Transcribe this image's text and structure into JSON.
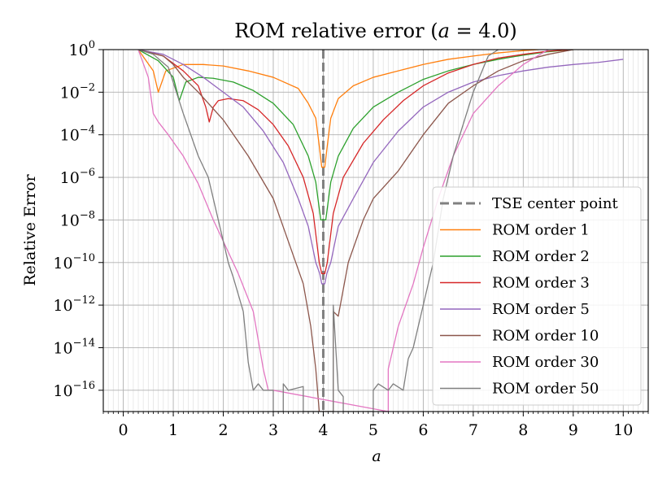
{
  "chart_data": {
    "type": "line",
    "title": "ROM relative error (a = 4.0)",
    "title_parts": {
      "prefix": "ROM relative error (",
      "var": "a",
      "suffix": " = 4.0)"
    },
    "xlabel": "a",
    "ylabel": "Relative Error",
    "xlim": [
      -0.4,
      10.5
    ],
    "ylim": [
      1e-17,
      1
    ],
    "yscale": "log",
    "grid": true,
    "minor_grid_x": true,
    "legend_position": "lower-right",
    "x_ticks": [
      "0",
      "1",
      "2",
      "3",
      "4",
      "5",
      "6",
      "7",
      "8",
      "9",
      "10"
    ],
    "y_ticks": [
      {
        "base": "10",
        "exp": "0",
        "value": 1
      },
      {
        "base": "10",
        "exp": "−2",
        "value": 0.01
      },
      {
        "base": "10",
        "exp": "−4",
        "value": 0.0001
      },
      {
        "base": "10",
        "exp": "−6",
        "value": 1e-06
      },
      {
        "base": "10",
        "exp": "−8",
        "value": 1e-08
      },
      {
        "base": "10",
        "exp": "−10",
        "value": 1e-10
      },
      {
        "base": "10",
        "exp": "−12",
        "value": 1e-12
      },
      {
        "base": "10",
        "exp": "−14",
        "value": 1e-14
      },
      {
        "base": "10",
        "exp": "−16",
        "value": 1e-16
      }
    ],
    "center_line": {
      "name": "TSE center point",
      "x": 4.0,
      "color": "#808080"
    },
    "series": [
      {
        "name": "ROM order 1",
        "color": "#ff7f0e",
        "points": [
          [
            0.3,
            1
          ],
          [
            0.6,
            0.1
          ],
          [
            0.7,
            0.01
          ],
          [
            0.85,
            0.1
          ],
          [
            1.2,
            0.2
          ],
          [
            1.6,
            0.2
          ],
          [
            2.0,
            0.17
          ],
          [
            2.5,
            0.1
          ],
          [
            3.0,
            0.05
          ],
          [
            3.5,
            0.015
          ],
          [
            3.7,
            0.003
          ],
          [
            3.85,
            0.0006
          ],
          [
            3.92,
            3e-05
          ],
          [
            3.97,
            3e-06
          ],
          [
            4.03,
            3e-06
          ],
          [
            4.08,
            3e-05
          ],
          [
            4.15,
            0.0006
          ],
          [
            4.3,
            0.005
          ],
          [
            4.6,
            0.02
          ],
          [
            5.0,
            0.05
          ],
          [
            5.5,
            0.1
          ],
          [
            6.0,
            0.2
          ],
          [
            6.5,
            0.35
          ],
          [
            7.0,
            0.5
          ],
          [
            7.5,
            0.7
          ],
          [
            8.0,
            0.9
          ],
          [
            8.3,
            1
          ]
        ]
      },
      {
        "name": "ROM order 2",
        "color": "#2ca02c",
        "points": [
          [
            0.3,
            1
          ],
          [
            0.7,
            0.3
          ],
          [
            1.0,
            0.05
          ],
          [
            1.12,
            0.004
          ],
          [
            1.25,
            0.03
          ],
          [
            1.5,
            0.05
          ],
          [
            1.8,
            0.045
          ],
          [
            2.2,
            0.03
          ],
          [
            2.6,
            0.012
          ],
          [
            3.0,
            0.003
          ],
          [
            3.4,
            0.0003
          ],
          [
            3.7,
            1e-05
          ],
          [
            3.85,
            6e-07
          ],
          [
            3.95,
            1e-08
          ],
          [
            4.05,
            1e-08
          ],
          [
            4.15,
            6e-07
          ],
          [
            4.3,
            1e-05
          ],
          [
            4.6,
            0.0002
          ],
          [
            5.0,
            0.002
          ],
          [
            5.5,
            0.01
          ],
          [
            6.0,
            0.04
          ],
          [
            6.5,
            0.1
          ],
          [
            7.0,
            0.2
          ],
          [
            7.5,
            0.35
          ],
          [
            8.0,
            0.55
          ],
          [
            8.5,
            0.8
          ],
          [
            9.0,
            1
          ]
        ]
      },
      {
        "name": "ROM order 3",
        "color": "#d62728",
        "points": [
          [
            0.3,
            1
          ],
          [
            0.8,
            0.5
          ],
          [
            1.2,
            0.1
          ],
          [
            1.5,
            0.02
          ],
          [
            1.65,
            0.002
          ],
          [
            1.72,
            0.0004
          ],
          [
            1.8,
            0.002
          ],
          [
            1.9,
            0.004
          ],
          [
            2.1,
            0.005
          ],
          [
            2.4,
            0.004
          ],
          [
            2.7,
            0.0015
          ],
          [
            3.0,
            0.0003
          ],
          [
            3.3,
            3e-05
          ],
          [
            3.6,
            1e-06
          ],
          [
            3.8,
            2e-08
          ],
          [
            3.92,
            1e-10
          ],
          [
            3.97,
            3e-11
          ],
          [
            4.03,
            3e-11
          ],
          [
            4.08,
            1e-10
          ],
          [
            4.2,
            2e-08
          ],
          [
            4.4,
            1e-06
          ],
          [
            4.8,
            4e-05
          ],
          [
            5.2,
            0.0005
          ],
          [
            5.6,
            0.004
          ],
          [
            6.0,
            0.02
          ],
          [
            6.5,
            0.08
          ],
          [
            7.0,
            0.2
          ],
          [
            7.5,
            0.4
          ],
          [
            8.0,
            0.6
          ],
          [
            8.5,
            0.85
          ],
          [
            9.0,
            1
          ]
        ]
      },
      {
        "name": "ROM order 5",
        "color": "#9467bd",
        "points": [
          [
            0.3,
            1
          ],
          [
            0.8,
            0.6
          ],
          [
            1.2,
            0.2
          ],
          [
            1.6,
            0.05
          ],
          [
            2.0,
            0.01
          ],
          [
            2.4,
            0.002
          ],
          [
            2.8,
            0.00015
          ],
          [
            3.2,
            5e-06
          ],
          [
            3.5,
            1e-07
          ],
          [
            3.7,
            5e-09
          ],
          [
            3.85,
            1e-10
          ],
          [
            3.93,
            3e-11
          ],
          [
            3.97,
            1e-11
          ],
          [
            4.03,
            1e-11
          ],
          [
            4.07,
            3e-11
          ],
          [
            4.15,
            1e-10
          ],
          [
            4.3,
            5e-09
          ],
          [
            4.6,
            1e-07
          ],
          [
            5.0,
            5e-06
          ],
          [
            5.5,
            0.00015
          ],
          [
            6.0,
            0.002
          ],
          [
            6.5,
            0.01
          ],
          [
            7.0,
            0.03
          ],
          [
            7.5,
            0.06
          ],
          [
            8.0,
            0.1
          ],
          [
            8.5,
            0.15
          ],
          [
            9.0,
            0.2
          ],
          [
            9.5,
            0.25
          ],
          [
            10.0,
            0.35
          ]
        ]
      },
      {
        "name": "ROM order 10",
        "color": "#8c564b",
        "points": [
          [
            0.3,
            1
          ],
          [
            0.8,
            0.5
          ],
          [
            1.0,
            0.2
          ],
          [
            1.2,
            0.05
          ],
          [
            1.5,
            0.01
          ],
          [
            2.0,
            0.0005
          ],
          [
            2.5,
            1e-05
          ],
          [
            3.0,
            1e-07
          ],
          [
            3.3,
            1e-09
          ],
          [
            3.6,
            1e-11
          ],
          [
            3.75,
            1e-13
          ],
          [
            3.85,
            1e-15
          ],
          [
            3.92,
            1e-17
          ],
          [
            4.2,
            1e-17
          ],
          [
            4.2,
            5e-13
          ],
          [
            4.3,
            3e-13
          ],
          [
            4.5,
            1e-10
          ],
          [
            4.8,
            1e-08
          ],
          [
            5.0,
            1e-07
          ],
          [
            5.5,
            2e-06
          ],
          [
            6.0,
            0.0001
          ],
          [
            6.5,
            0.003
          ],
          [
            7.0,
            0.02
          ],
          [
            7.5,
            0.1
          ],
          [
            8.0,
            0.3
          ],
          [
            8.5,
            0.6
          ],
          [
            9.0,
            1
          ]
        ]
      },
      {
        "name": "ROM order 30",
        "color": "#e377c2",
        "points": [
          [
            0.3,
            1
          ],
          [
            0.5,
            0.05
          ],
          [
            0.6,
            0.001
          ],
          [
            0.7,
            0.0004
          ],
          [
            0.9,
            0.0001
          ],
          [
            1.2,
            1e-05
          ],
          [
            1.5,
            5e-07
          ],
          [
            1.8,
            1e-08
          ],
          [
            2.0,
            1e-09
          ],
          [
            2.3,
            3e-11
          ],
          [
            2.6,
            5e-13
          ],
          [
            2.8,
            1e-15
          ],
          [
            2.9,
            1e-16
          ],
          [
            3.0,
            1e-16
          ],
          [
            5.3,
            1e-17
          ],
          [
            5.3,
            1e-15
          ],
          [
            5.5,
            1e-13
          ],
          [
            5.8,
            1e-11
          ],
          [
            6.0,
            5e-10
          ],
          [
            6.3,
            1e-07
          ],
          [
            6.6,
            1e-05
          ],
          [
            7.0,
            0.001
          ],
          [
            7.5,
            0.02
          ],
          [
            8.0,
            0.2
          ],
          [
            8.5,
            1
          ]
        ]
      },
      {
        "name": "ROM order 50",
        "color": "#7f7f7f",
        "points": [
          [
            0.3,
            1
          ],
          [
            0.6,
            0.6
          ],
          [
            0.9,
            0.15
          ],
          [
            1.2,
            0.001
          ],
          [
            1.5,
            1e-05
          ],
          [
            1.7,
            1e-06
          ],
          [
            1.9,
            1e-08
          ],
          [
            2.1,
            1e-10
          ],
          [
            2.2,
            2e-11
          ],
          [
            2.4,
            5e-13
          ],
          [
            2.5,
            2e-15
          ],
          [
            2.6,
            1e-16
          ],
          [
            2.7,
            2e-16
          ],
          [
            2.8,
            1e-16
          ],
          [
            2.9,
            1e-16
          ],
          [
            3.0,
            1e-16
          ],
          [
            3.0,
            1e-17
          ],
          [
            3.2,
            1e-17
          ],
          [
            3.2,
            2e-16
          ],
          [
            3.3,
            1e-16
          ],
          [
            3.6,
            1.5e-16
          ],
          [
            3.6,
            1e-17
          ],
          [
            4.2,
            1e-17
          ],
          [
            4.2,
            1e-12
          ],
          [
            4.3,
            1e-16
          ],
          [
            4.4,
            5e-17
          ],
          [
            4.4,
            1e-17
          ],
          [
            5.0,
            1e-17
          ],
          [
            5.0,
            1e-16
          ],
          [
            5.1,
            2e-16
          ],
          [
            5.3,
            1e-16
          ],
          [
            5.4,
            2e-16
          ],
          [
            5.6,
            1e-16
          ],
          [
            5.7,
            3e-15
          ],
          [
            5.8,
            1e-14
          ],
          [
            6.0,
            1e-12
          ],
          [
            6.2,
            1e-10
          ],
          [
            6.4,
            1e-07
          ],
          [
            6.6,
            1e-05
          ],
          [
            7.0,
            0.01
          ],
          [
            7.3,
            0.5
          ],
          [
            7.5,
            1
          ]
        ]
      }
    ]
  }
}
